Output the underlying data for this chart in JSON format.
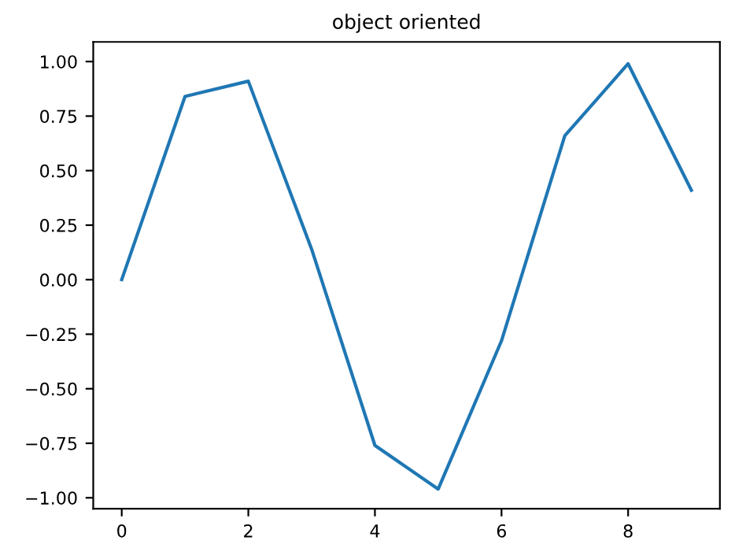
{
  "chart_data": {
    "type": "line",
    "title": "object oriented",
    "x": [
      0,
      1,
      2,
      3,
      4,
      5,
      6,
      7,
      8,
      9
    ],
    "series": [
      {
        "color": "#1f77b4",
        "values": [
          0.0,
          0.84,
          0.91,
          0.14,
          -0.76,
          -0.96,
          -0.28,
          0.66,
          0.99,
          0.41
        ]
      }
    ],
    "xlim": [
      -0.45,
      9.45
    ],
    "ylim": [
      -1.05,
      1.09
    ],
    "xticks": [
      0,
      2,
      4,
      6,
      8
    ],
    "yticks": [
      {
        "value": -1,
        "label": "−1.00"
      },
      {
        "value": -0.75,
        "label": "−0.75"
      },
      {
        "value": -0.5,
        "label": "−0.50"
      },
      {
        "value": -0.25,
        "label": "−0.25"
      },
      {
        "value": 0,
        "label": "0.00"
      },
      {
        "value": 0.25,
        "label": "0.25"
      },
      {
        "value": 0.5,
        "label": "0.50"
      },
      {
        "value": 0.75,
        "label": "0.75"
      },
      {
        "value": 1,
        "label": "1.00"
      }
    ],
    "grid": false,
    "legend": false,
    "marker": "none",
    "line_style": "solid"
  }
}
